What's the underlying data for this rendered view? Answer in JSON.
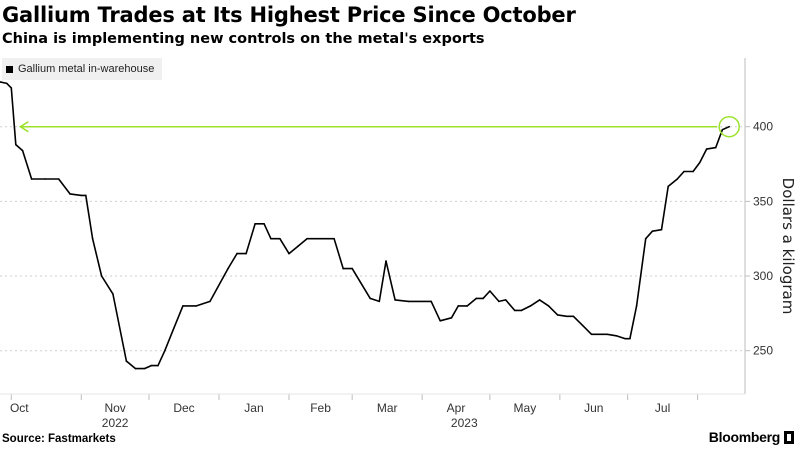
{
  "title": "Gallium Trades at Its Highest Price Since October",
  "subtitle": "China is implementing new controls on the metal's exports",
  "source": "Source: Fastmarkets",
  "brand": "Bloomberg",
  "colors": {
    "line": "#000000",
    "highlight": "#9be22d",
    "grid": "#cfcfcf",
    "legend_bg": "#f0f0f0"
  },
  "chart_data": {
    "type": "line",
    "ylabel": "Dollars a kilogram",
    "ylim": [
      221,
      446
    ],
    "yticks": [
      250,
      300,
      350,
      400
    ],
    "grid": true,
    "legend_position": "top-left",
    "x_tick_labels": [
      "Oct",
      "Nov",
      "Dec",
      "Jan",
      "Feb",
      "Mar",
      "Apr",
      "May",
      "Jun",
      "Jul"
    ],
    "x_year_labels": [
      "2022",
      "2023"
    ],
    "series": [
      {
        "name": "Gallium metal in-warehouse",
        "points": [
          [
            "2022-09-26",
            430
          ],
          [
            "2022-09-29",
            429
          ],
          [
            "2022-10-01",
            426
          ],
          [
            "2022-10-03",
            388
          ],
          [
            "2022-10-06",
            384
          ],
          [
            "2022-10-10",
            365
          ],
          [
            "2022-10-16",
            365
          ],
          [
            "2022-10-22",
            365
          ],
          [
            "2022-10-27",
            355
          ],
          [
            "2022-11-01",
            354
          ],
          [
            "2022-11-03",
            354
          ],
          [
            "2022-11-06",
            325
          ],
          [
            "2022-11-10",
            300
          ],
          [
            "2022-11-15",
            288
          ],
          [
            "2022-11-21",
            243
          ],
          [
            "2022-11-25",
            238
          ],
          [
            "2022-11-29",
            238
          ],
          [
            "2022-12-02",
            240
          ],
          [
            "2022-12-05",
            240
          ],
          [
            "2022-12-08",
            250
          ],
          [
            "2022-12-12",
            265
          ],
          [
            "2022-12-16",
            280
          ],
          [
            "2022-12-22",
            280
          ],
          [
            "2022-12-28",
            283
          ],
          [
            "2023-01-05",
            305
          ],
          [
            "2023-01-09",
            315
          ],
          [
            "2023-01-13",
            315
          ],
          [
            "2023-01-17",
            335
          ],
          [
            "2023-01-21",
            335
          ],
          [
            "2023-01-24",
            325
          ],
          [
            "2023-01-28",
            325
          ],
          [
            "2023-02-01",
            315
          ],
          [
            "2023-02-05",
            320
          ],
          [
            "2023-02-09",
            325
          ],
          [
            "2023-02-21",
            325
          ],
          [
            "2023-02-25",
            305
          ],
          [
            "2023-03-01",
            305
          ],
          [
            "2023-03-09",
            285
          ],
          [
            "2023-03-13",
            283
          ],
          [
            "2023-03-16",
            310
          ],
          [
            "2023-03-20",
            284
          ],
          [
            "2023-03-26",
            283
          ],
          [
            "2023-04-05",
            283
          ],
          [
            "2023-04-09",
            270
          ],
          [
            "2023-04-14",
            272
          ],
          [
            "2023-04-17",
            280
          ],
          [
            "2023-04-21",
            280
          ],
          [
            "2023-04-25",
            285
          ],
          [
            "2023-04-28",
            285
          ],
          [
            "2023-05-01",
            290
          ],
          [
            "2023-05-05",
            283
          ],
          [
            "2023-05-08",
            284
          ],
          [
            "2023-05-12",
            277
          ],
          [
            "2023-05-15",
            277
          ],
          [
            "2023-05-19",
            280
          ],
          [
            "2023-05-23",
            284
          ],
          [
            "2023-05-27",
            280
          ],
          [
            "2023-05-31",
            274
          ],
          [
            "2023-06-04",
            273
          ],
          [
            "2023-06-07",
            273
          ],
          [
            "2023-06-11",
            267
          ],
          [
            "2023-06-15",
            261
          ],
          [
            "2023-06-22",
            261
          ],
          [
            "2023-06-26",
            260
          ],
          [
            "2023-06-30",
            258
          ],
          [
            "2023-07-02",
            258
          ],
          [
            "2023-07-05",
            280
          ],
          [
            "2023-07-09",
            325
          ],
          [
            "2023-07-12",
            330
          ],
          [
            "2023-07-16",
            331
          ],
          [
            "2023-07-19",
            360
          ],
          [
            "2023-07-23",
            365
          ],
          [
            "2023-07-26",
            370
          ],
          [
            "2023-07-30",
            370
          ],
          [
            "2023-08-02",
            376
          ],
          [
            "2023-08-05",
            385
          ],
          [
            "2023-08-09",
            386
          ],
          [
            "2023-08-12",
            398
          ],
          [
            "2023-08-15",
            400
          ]
        ]
      }
    ],
    "annotation": {
      "type": "horizontal-arrow",
      "y": 400,
      "from": "2023-08-15",
      "to": "2022-10-05"
    }
  }
}
